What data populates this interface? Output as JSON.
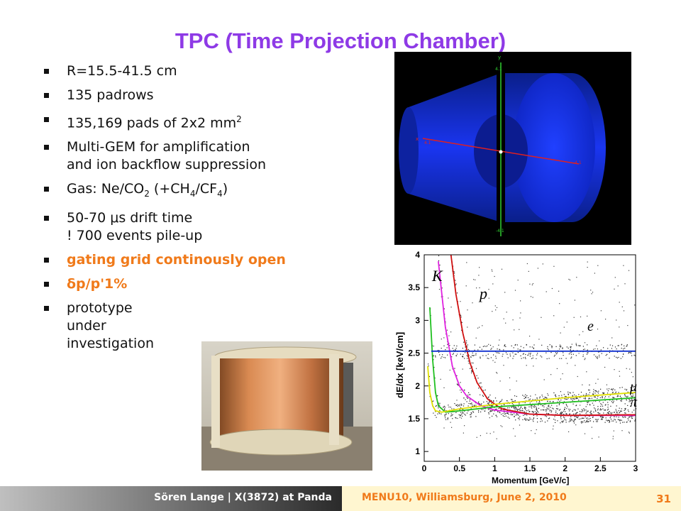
{
  "slide": {
    "title": "TPC (Time Projection Chamber)",
    "bullets": [
      {
        "text": "R=15.5-41.5 cm"
      },
      {
        "text": "135 padrows"
      },
      {
        "pre": "135,169 pads of 2x2 mm",
        "sup": "2"
      },
      {
        "line1": "Multi-GEM for amplification",
        "line2": "and ion backflow suppression"
      },
      {
        "a": "Gas: Ne/CO",
        "b": "2",
        "c": " (+CH",
        "d": "4",
        "e": "/CF",
        "f": "4",
        "g": ")"
      },
      {
        "line1": "50-70 μs drift time",
        "line2": "! 700 events pile-up"
      },
      {
        "text": "gating grid continously open"
      },
      {
        "text": "δp/p'1%"
      },
      {
        "line1": "prototype",
        "line2": "under",
        "line3": "investigation"
      }
    ]
  },
  "detector_view": {
    "axis_y": "y",
    "axis_x": "x",
    "tick_top": "4.1",
    "tick_bottom": "-4.1",
    "tick_left": "4.1",
    "tick_right": "-4.1"
  },
  "chart_data": {
    "type": "scatter",
    "xlabel": "Momentum [GeV/c]",
    "ylabel": "dE/dx [keV/cm]",
    "xlim": [
      0,
      3
    ],
    "ylim": [
      0.85,
      4
    ],
    "x_ticks": [
      "0",
      "0.5",
      "1",
      "1.5",
      "2",
      "2.5",
      "3"
    ],
    "y_ticks": [
      "1",
      "1.5",
      "2",
      "2.5",
      "3",
      "3.5",
      "4"
    ],
    "particle_labels": {
      "K": "K",
      "p": "p",
      "e": "e",
      "mu": "μ",
      "pi": "π"
    },
    "series": [
      {
        "color": "#e020e0",
        "x": [
          0.2,
          0.3,
          0.4,
          0.5,
          0.6,
          0.8,
          1.0,
          1.5,
          2.0,
          3.0
        ],
        "y": [
          3.9,
          2.9,
          2.3,
          2.0,
          1.85,
          1.7,
          1.63,
          1.57,
          1.55,
          1.55
        ]
      },
      {
        "color": "#d01010",
        "x": [
          0.38,
          0.45,
          0.55,
          0.65,
          0.75,
          0.9,
          1.1,
          1.5,
          2.0,
          3.0
        ],
        "y": [
          4.0,
          3.4,
          2.8,
          2.35,
          2.05,
          1.8,
          1.65,
          1.57,
          1.55,
          1.56
        ]
      },
      {
        "color": "#20c020",
        "x": [
          0.08,
          0.12,
          0.16,
          0.2,
          0.3,
          0.5,
          1.0,
          2.0,
          3.0
        ],
        "y": [
          3.2,
          2.4,
          1.9,
          1.7,
          1.6,
          1.62,
          1.68,
          1.75,
          1.82
        ]
      },
      {
        "color": "#e0e000",
        "x": [
          0.05,
          0.08,
          0.12,
          0.16,
          0.25,
          0.5,
          1.0,
          2.0,
          3.0
        ],
        "y": [
          2.3,
          1.9,
          1.7,
          1.62,
          1.6,
          1.65,
          1.72,
          1.82,
          1.9
        ]
      },
      {
        "color": "#1030d0",
        "x": [
          0.1,
          3.0
        ],
        "y": [
          2.53,
          2.53
        ]
      }
    ]
  },
  "footer": {
    "author": "Sören Lange | X(3872) at Panda",
    "conference": "MENU10, Williamsburg, June 2, 2010",
    "page": "31"
  }
}
